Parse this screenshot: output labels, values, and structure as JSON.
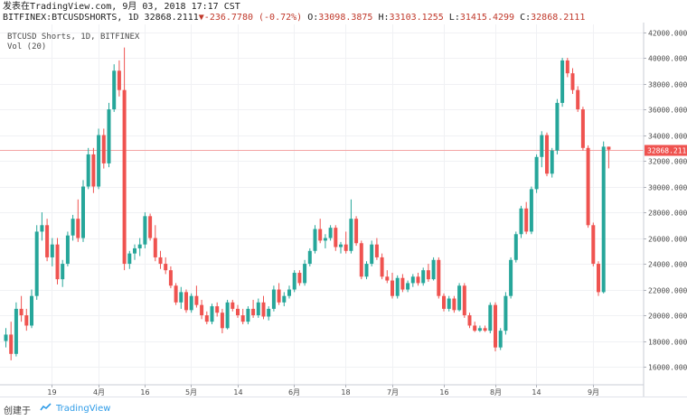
{
  "header": {
    "line1": "发表在TradingView.com, 9月 03, 2018 17:17 CST",
    "symbol": "BITFINEX:BTCUSDSHORTS, 1D",
    "last": "32868.2111",
    "change": "-236.7780 (-0.72%)",
    "o_label": "O:",
    "o_value": "33098.3875",
    "h_label": "H:",
    "h_value": "33103.1255",
    "l_label": "L:",
    "l_value": "31415.4299",
    "c_label": "C:",
    "c_value": "32868.2111"
  },
  "legend": {
    "title": "BTCUSD Shorts, 1D, BITFINEX",
    "volume": "Vol (20)"
  },
  "footer": {
    "created_with": "创建于",
    "brand": "TradingView"
  },
  "colors": {
    "up": "#26a69a",
    "down": "#ef5350",
    "price_line": "#f4a5a5",
    "price_label_bg": "#ef5350"
  },
  "chart_data": {
    "type": "candlestick",
    "title": "BTCUSD Shorts, 1D, BITFINEX",
    "y_ticks": [
      16000,
      18000,
      20000,
      22000,
      24000,
      26000,
      28000,
      30000,
      32000,
      34000,
      36000,
      38000,
      40000,
      42000
    ],
    "y_tick_labels": [
      "16000.0000",
      "18000.0000",
      "20000.0000",
      "22000.0000",
      "24000.0000",
      "26000.0000",
      "28000.0000",
      "30000.0000",
      "32000.0000",
      "34000.0000",
      "36000.0000",
      "38000.0000",
      "40000.0000",
      "42000.0000"
    ],
    "ylim": [
      14600,
      42600
    ],
    "x_ticks": [
      {
        "label": "19",
        "i": 9
      },
      {
        "label": "4月",
        "i": 18
      },
      {
        "label": "16",
        "i": 27
      },
      {
        "label": "5月",
        "i": 36
      },
      {
        "label": "14",
        "i": 45
      },
      {
        "label": "6月",
        "i": 56
      },
      {
        "label": "18",
        "i": 66
      },
      {
        "label": "7月",
        "i": 75
      },
      {
        "label": "16",
        "i": 85
      },
      {
        "label": "8月",
        "i": 95
      },
      {
        "label": "14",
        "i": 103
      },
      {
        "label": "9月",
        "i": 114
      }
    ],
    "last_price": 32868.2111,
    "last_price_label": "32868.2111",
    "candles": [
      [
        18000,
        19000,
        17500,
        18500
      ],
      [
        18500,
        19500,
        16500,
        17000
      ],
      [
        17000,
        21000,
        16800,
        20500
      ],
      [
        20500,
        21500,
        19500,
        20000
      ],
      [
        20000,
        20500,
        18800,
        19200
      ],
      [
        19200,
        22000,
        19000,
        21500
      ],
      [
        21500,
        27000,
        21200,
        26500
      ],
      [
        26500,
        28000,
        25800,
        27000
      ],
      [
        27000,
        27500,
        24200,
        24500
      ],
      [
        24500,
        26000,
        23800,
        25500
      ],
      [
        25500,
        26000,
        22400,
        22800
      ],
      [
        22800,
        24300,
        22200,
        24000
      ],
      [
        24000,
        26500,
        23800,
        26200
      ],
      [
        26200,
        27800,
        25800,
        27500
      ],
      [
        27500,
        29000,
        25700,
        26000
      ],
      [
        26000,
        30500,
        25700,
        30000
      ],
      [
        30000,
        33000,
        29800,
        32500
      ],
      [
        32500,
        33000,
        29500,
        30000
      ],
      [
        30000,
        34500,
        29800,
        34000
      ],
      [
        34000,
        34500,
        31400,
        31800
      ],
      [
        31800,
        36500,
        31500,
        36000
      ],
      [
        36000,
        39500,
        35800,
        39000
      ],
      [
        39000,
        39800,
        37000,
        37500
      ],
      [
        37500,
        40800,
        23500,
        24000
      ],
      [
        24000,
        25000,
        23600,
        24800
      ],
      [
        24800,
        25500,
        24300,
        25200
      ],
      [
        25200,
        26000,
        24600,
        25500
      ],
      [
        25500,
        28000,
        25200,
        27700
      ],
      [
        27700,
        27900,
        25800,
        26000
      ],
      [
        26000,
        27000,
        24200,
        24500
      ],
      [
        24500,
        25000,
        23600,
        24000
      ],
      [
        24000,
        24500,
        23200,
        23500
      ],
      [
        23500,
        23800,
        22100,
        22300
      ],
      [
        22300,
        22500,
        20800,
        21000
      ],
      [
        21000,
        22200,
        20500,
        21800
      ],
      [
        21800,
        22000,
        20200,
        20400
      ],
      [
        20400,
        21700,
        20200,
        21500
      ],
      [
        21500,
        22300,
        20600,
        20800
      ],
      [
        20800,
        21200,
        19700,
        20000
      ],
      [
        20000,
        20300,
        19300,
        19500
      ],
      [
        19500,
        20900,
        19300,
        20700
      ],
      [
        20700,
        21000,
        19900,
        20200
      ],
      [
        20200,
        20500,
        18600,
        19000
      ],
      [
        19000,
        21200,
        18900,
        21000
      ],
      [
        21000,
        21200,
        20300,
        20500
      ],
      [
        20500,
        20800,
        19800,
        20000
      ],
      [
        20000,
        20500,
        19300,
        19500
      ],
      [
        19500,
        20700,
        19300,
        20500
      ],
      [
        20500,
        21200,
        19800,
        20000
      ],
      [
        20000,
        21300,
        19800,
        21000
      ],
      [
        21000,
        21500,
        19700,
        19900
      ],
      [
        19900,
        20700,
        19600,
        20500
      ],
      [
        20500,
        22300,
        20300,
        22000
      ],
      [
        22000,
        22500,
        20800,
        21000
      ],
      [
        21000,
        21800,
        20700,
        21500
      ],
      [
        21500,
        22300,
        21300,
        22000
      ],
      [
        22000,
        23500,
        21800,
        23300
      ],
      [
        23300,
        23500,
        22300,
        22500
      ],
      [
        22500,
        24300,
        22300,
        24000
      ],
      [
        24000,
        25200,
        23800,
        25000
      ],
      [
        25000,
        27000,
        24800,
        26700
      ],
      [
        26700,
        27500,
        25600,
        25800
      ],
      [
        25800,
        26300,
        25200,
        26000
      ],
      [
        26000,
        27000,
        25800,
        26800
      ],
      [
        26800,
        27000,
        25000,
        25300
      ],
      [
        25300,
        25700,
        24800,
        25500
      ],
      [
        25500,
        26500,
        24800,
        25000
      ],
      [
        25000,
        29000,
        24800,
        27500
      ],
      [
        27500,
        27700,
        25400,
        25600
      ],
      [
        25600,
        25800,
        22800,
        23000
      ],
      [
        23000,
        24200,
        22800,
        24000
      ],
      [
        24000,
        25800,
        23800,
        25500
      ],
      [
        25500,
        26000,
        24300,
        24500
      ],
      [
        24500,
        24800,
        22800,
        23000
      ],
      [
        23000,
        23500,
        22500,
        22700
      ],
      [
        22700,
        23300,
        21300,
        21500
      ],
      [
        21500,
        23100,
        21300,
        22900
      ],
      [
        22900,
        23200,
        21800,
        22000
      ],
      [
        22000,
        22700,
        21800,
        22500
      ],
      [
        22500,
        23200,
        22200,
        23000
      ],
      [
        23000,
        23300,
        22300,
        22500
      ],
      [
        22500,
        23700,
        22300,
        23500
      ],
      [
        23500,
        24000,
        22600,
        22800
      ],
      [
        22800,
        24500,
        22700,
        24300
      ],
      [
        24300,
        24500,
        21300,
        21500
      ],
      [
        21500,
        21700,
        20300,
        20500
      ],
      [
        20500,
        21500,
        20300,
        21300
      ],
      [
        21300,
        21500,
        20200,
        20400
      ],
      [
        20400,
        22500,
        20300,
        22300
      ],
      [
        22300,
        22500,
        19800,
        20000
      ],
      [
        20000,
        20200,
        19000,
        19200
      ],
      [
        19200,
        19500,
        18700,
        18800
      ],
      [
        18800,
        19200,
        18700,
        19000
      ],
      [
        19000,
        19200,
        18700,
        18800
      ],
      [
        18800,
        21000,
        18600,
        20800
      ],
      [
        20800,
        21000,
        17200,
        17500
      ],
      [
        17500,
        19000,
        17300,
        18800
      ],
      [
        18800,
        21800,
        18500,
        21500
      ],
      [
        21500,
        24500,
        21300,
        24300
      ],
      [
        24300,
        26500,
        24100,
        26300
      ],
      [
        26300,
        28500,
        26000,
        28300
      ],
      [
        28300,
        28800,
        26300,
        26500
      ],
      [
        26500,
        30000,
        26300,
        29800
      ],
      [
        29800,
        32500,
        29500,
        32300
      ],
      [
        32300,
        34300,
        31500,
        34000
      ],
      [
        34000,
        34200,
        30800,
        31000
      ],
      [
        31000,
        33000,
        30700,
        32800
      ],
      [
        32800,
        36800,
        32500,
        36500
      ],
      [
        36500,
        40000,
        36200,
        39800
      ],
      [
        39800,
        40000,
        38500,
        38800
      ],
      [
        38800,
        39200,
        37200,
        37500
      ],
      [
        37500,
        37800,
        35800,
        36000
      ],
      [
        36000,
        36200,
        32800,
        33000
      ],
      [
        33000,
        33200,
        26800,
        27000
      ],
      [
        27000,
        27200,
        23800,
        24000
      ],
      [
        24000,
        24200,
        21500,
        21800
      ],
      [
        21800,
        33500,
        21700,
        33100
      ],
      [
        33098.3875,
        33103.1255,
        31415.4299,
        32868.2111
      ]
    ]
  }
}
